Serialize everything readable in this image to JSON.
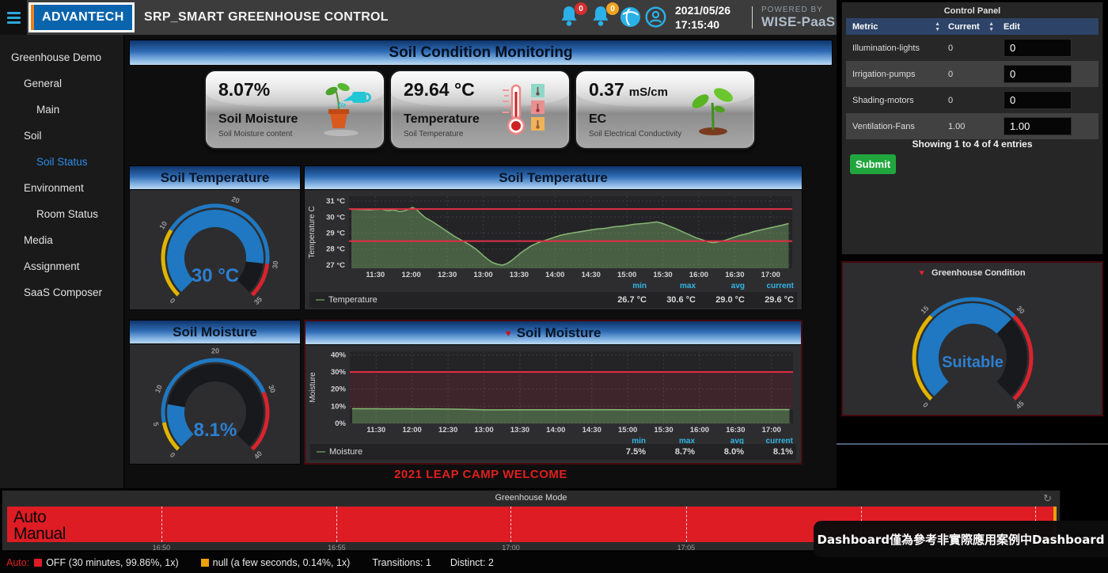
{
  "topbar": {
    "logo": "ADVANTECH",
    "title": "SRP_SMART GREENHOUSE CONTROL",
    "alarm_badge": "0",
    "warning_badge": "0",
    "date": "2021/05/26",
    "time": "17:15:40",
    "powered_by": "POWERED BY",
    "brand": "WISE-PaaS"
  },
  "sidebar": {
    "items": [
      {
        "label": "Greenhouse Demo",
        "level": 0,
        "active": false
      },
      {
        "label": "General",
        "level": 1,
        "active": false
      },
      {
        "label": "Main",
        "level": 2,
        "active": false
      },
      {
        "label": "Soil",
        "level": 1,
        "active": false
      },
      {
        "label": "Soil Status",
        "level": 2,
        "active": true
      },
      {
        "label": "Environment",
        "level": 1,
        "active": false
      },
      {
        "label": "Room Status",
        "level": 2,
        "active": false
      },
      {
        "label": "Media",
        "level": 1,
        "active": false
      },
      {
        "label": "Assignment",
        "level": 1,
        "active": false
      },
      {
        "label": "SaaS Composer",
        "level": 1,
        "active": false
      }
    ]
  },
  "banner": {
    "title": "Soil Condition Monitoring"
  },
  "cards": [
    {
      "value": "8.07%",
      "unit": "",
      "label": "Soil Moisture",
      "sublabel": "Soil Moisture  content",
      "icon": "watering-plant-icon"
    },
    {
      "value": "29.64 °C",
      "unit": "",
      "label": "Temperature",
      "sublabel": "Soil Temperature",
      "icon": "thermometer-icon"
    },
    {
      "value": "0.37",
      "unit": "mS/cm",
      "label": "EC",
      "sublabel": "Soil Electrical Conductivity",
      "icon": "seedling-icon"
    }
  ],
  "panel_titles": {
    "soil_temp_gauge": "Soil Temperature",
    "soil_temp_chart": "Soil Temperature",
    "soil_moist_gauge": "Soil Moisture",
    "soil_moist_chart": "Soil Moisture"
  },
  "stats_headers": [
    "min",
    "max",
    "avg",
    "current"
  ],
  "chart_data": [
    {
      "id": "soil-temp-gauge",
      "type": "gauge",
      "title": "Soil Temperature",
      "min": 0,
      "max": 35,
      "value": 30,
      "display": "30 °C",
      "value_color": "#2d7fd0",
      "ticks": [
        0,
        10,
        20,
        30,
        35
      ],
      "thresholds": [
        {
          "from": 0,
          "to": 10,
          "color": "#e0b400"
        },
        {
          "from": 10,
          "to": 30,
          "color": "#1f78c1"
        },
        {
          "from": 30,
          "to": 35,
          "color": "#d9232e"
        }
      ],
      "bar_color": "#1f78c1"
    },
    {
      "id": "soil-temp-chart",
      "type": "area",
      "title": "Soil Temperature",
      "ylabel": "Temperature C",
      "ylim": [
        26.8,
        31.3
      ],
      "y_ticks": [
        {
          "v": 27,
          "label": "27 °C"
        },
        {
          "v": 28,
          "label": "28 °C"
        },
        {
          "v": 29,
          "label": "29 °C"
        },
        {
          "v": 30,
          "label": "30 °C"
        },
        {
          "v": 31,
          "label": "31 °C"
        }
      ],
      "xlim": [
        668,
        1038
      ],
      "x_ticks": [
        {
          "v": 690,
          "label": "11:30"
        },
        {
          "v": 720,
          "label": "12:00"
        },
        {
          "v": 750,
          "label": "12:30"
        },
        {
          "v": 780,
          "label": "13:00"
        },
        {
          "v": 810,
          "label": "13:30"
        },
        {
          "v": 840,
          "label": "14:00"
        },
        {
          "v": 870,
          "label": "14:30"
        },
        {
          "v": 900,
          "label": "15:00"
        },
        {
          "v": 930,
          "label": "15:30"
        },
        {
          "v": 960,
          "label": "16:00"
        },
        {
          "v": 990,
          "label": "16:30"
        },
        {
          "v": 1020,
          "label": "17:00"
        }
      ],
      "threshold_lines": [
        {
          "v": 30.5,
          "color": "#e02f44"
        },
        {
          "v": 28.5,
          "color": "#e02f44"
        }
      ],
      "series": [
        {
          "name": "Temperature",
          "color": "#86b874",
          "fill": "rgba(126,178,109,0.42)",
          "points": [
            [
              670,
              30.5
            ],
            [
              685,
              30.45
            ],
            [
              695,
              30.5
            ],
            [
              700,
              30.4
            ],
            [
              705,
              30.45
            ],
            [
              710,
              30.35
            ],
            [
              715,
              30.4
            ],
            [
              718,
              30.5
            ],
            [
              721,
              30.6
            ],
            [
              724,
              30.5
            ],
            [
              728,
              30.2
            ],
            [
              732,
              29.95
            ],
            [
              738,
              29.7
            ],
            [
              744,
              29.4
            ],
            [
              750,
              29.1
            ],
            [
              756,
              28.8
            ],
            [
              762,
              28.55
            ],
            [
              768,
              28.3
            ],
            [
              774,
              28.0
            ],
            [
              780,
              27.6
            ],
            [
              784,
              27.35
            ],
            [
              788,
              27.15
            ],
            [
              792,
              27.05
            ],
            [
              796,
              27.0
            ],
            [
              800,
              27.1
            ],
            [
              804,
              27.3
            ],
            [
              808,
              27.55
            ],
            [
              812,
              27.8
            ],
            [
              816,
              28.0
            ],
            [
              820,
              28.2
            ],
            [
              826,
              28.4
            ],
            [
              832,
              28.55
            ],
            [
              838,
              28.7
            ],
            [
              844,
              28.85
            ],
            [
              850,
              28.95
            ],
            [
              858,
              29.05
            ],
            [
              866,
              29.15
            ],
            [
              874,
              29.25
            ],
            [
              882,
              29.3
            ],
            [
              890,
              29.4
            ],
            [
              898,
              29.45
            ],
            [
              906,
              29.55
            ],
            [
              914,
              29.6
            ],
            [
              920,
              29.65
            ],
            [
              925,
              29.7
            ],
            [
              930,
              29.6
            ],
            [
              935,
              29.45
            ],
            [
              940,
              29.3
            ],
            [
              946,
              29.1
            ],
            [
              952,
              28.9
            ],
            [
              958,
              28.7
            ],
            [
              964,
              28.55
            ],
            [
              968,
              28.45
            ],
            [
              972,
              28.4
            ],
            [
              976,
              28.45
            ],
            [
              982,
              28.55
            ],
            [
              988,
              28.7
            ],
            [
              994,
              28.85
            ],
            [
              1000,
              28.95
            ],
            [
              1006,
              29.1
            ],
            [
              1012,
              29.2
            ],
            [
              1018,
              29.3
            ],
            [
              1024,
              29.4
            ],
            [
              1030,
              29.5
            ],
            [
              1035,
              29.6
            ]
          ]
        }
      ],
      "stats": {
        "min": "26.7 °C",
        "max": "30.6 °C",
        "avg": "29.0 °C",
        "current": "29.6 °C"
      },
      "alert_heart": false
    },
    {
      "id": "soil-moist-gauge",
      "type": "gauge",
      "title": "Soil Moisture",
      "min": 0,
      "max": 40,
      "value": 8.1,
      "display": "8.1%",
      "value_color": "#2d7fd0",
      "ticks": [
        0,
        5,
        10,
        20,
        30,
        40
      ],
      "thresholds": [
        {
          "from": 0,
          "to": 5,
          "color": "#e0b400"
        },
        {
          "from": 5,
          "to": 30,
          "color": "#1f78c1"
        },
        {
          "from": 30,
          "to": 40,
          "color": "#d9232e"
        }
      ],
      "bar_color": "#1f78c1"
    },
    {
      "id": "soil-moist-chart",
      "type": "area",
      "title": "Soil Moisture",
      "ylabel": "Moisture",
      "ylim": [
        0,
        42
      ],
      "y_ticks": [
        {
          "v": 0,
          "label": "0%"
        },
        {
          "v": 10,
          "label": "10%"
        },
        {
          "v": 20,
          "label": "20%"
        },
        {
          "v": 30,
          "label": "30%"
        },
        {
          "v": 40,
          "label": "40%"
        }
      ],
      "xlim": [
        668,
        1038
      ],
      "x_ticks": [
        {
          "v": 690,
          "label": "11:30"
        },
        {
          "v": 720,
          "label": "12:00"
        },
        {
          "v": 750,
          "label": "12:30"
        },
        {
          "v": 780,
          "label": "13:00"
        },
        {
          "v": 810,
          "label": "13:30"
        },
        {
          "v": 840,
          "label": "14:00"
        },
        {
          "v": 870,
          "label": "14:30"
        },
        {
          "v": 900,
          "label": "15:00"
        },
        {
          "v": 930,
          "label": "15:30"
        },
        {
          "v": 960,
          "label": "16:00"
        },
        {
          "v": 990,
          "label": "16:30"
        },
        {
          "v": 1020,
          "label": "17:00"
        }
      ],
      "threshold_lines": [
        {
          "v": 30,
          "color": "#e02f44"
        }
      ],
      "threshold_region": {
        "from": 8.2,
        "to": 30,
        "color": "rgba(224,47,68,0.14)"
      },
      "series": [
        {
          "name": "Moisture",
          "color": "#86b874",
          "fill": "rgba(126,178,109,0.42)",
          "points": [
            [
              670,
              8.6
            ],
            [
              690,
              8.55
            ],
            [
              700,
              8.5
            ],
            [
              715,
              8.55
            ],
            [
              725,
              8.45
            ],
            [
              735,
              8.5
            ],
            [
              750,
              8.35
            ],
            [
              765,
              8.2
            ],
            [
              780,
              8.0
            ],
            [
              790,
              7.9
            ],
            [
              800,
              7.95
            ],
            [
              815,
              8.0
            ],
            [
              840,
              8.0
            ],
            [
              870,
              8.05
            ],
            [
              900,
              8.0
            ],
            [
              930,
              8.0
            ],
            [
              960,
              8.0
            ],
            [
              985,
              8.05
            ],
            [
              1010,
              8.1
            ],
            [
              1035,
              8.1
            ]
          ]
        }
      ],
      "stats": {
        "min": "7.5%",
        "max": "8.7%",
        "avg": "8.0%",
        "current": "8.1%"
      },
      "alert_heart": true
    },
    {
      "id": "greenhouse-condition-gauge",
      "type": "gauge",
      "title": "Greenhouse Condition",
      "min": 0,
      "max": 45,
      "value": 30,
      "display": "Suitable",
      "value_color": "#2d7fd0",
      "ticks": [
        0,
        15,
        30,
        45
      ],
      "thresholds": [
        {
          "from": 0,
          "to": 15,
          "color": "#e0b400"
        },
        {
          "from": 15,
          "to": 30,
          "color": "#1f78c1"
        },
        {
          "from": 30,
          "to": 45,
          "color": "#d9232e"
        }
      ],
      "bar_color": "#1f78c1"
    },
    {
      "id": "greenhouse-mode",
      "type": "discrete",
      "title": "Greenhouse Mode",
      "rows": [
        "Auto",
        "Manual"
      ],
      "segments": [
        {
          "state": "OFF",
          "color": "#dd1c24",
          "percent": 99.86
        },
        {
          "state": "null",
          "color": "#eca00b",
          "percent": 0.14
        }
      ],
      "x_ticks": [
        {
          "f": 0.147,
          "label": "16:50"
        },
        {
          "f": 0.314,
          "label": "16:55"
        },
        {
          "f": 0.48,
          "label": "17:00"
        },
        {
          "f": 0.647,
          "label": "17:05"
        },
        {
          "f": 0.814,
          "label": ""
        },
        {
          "f": 0.98,
          "label": ""
        }
      ],
      "legend_prefix": "Auto:",
      "legend_items": [
        {
          "color": "#dd1c24",
          "text": "OFF (30 minutes, 99.86%, 1x)"
        },
        {
          "color": "#eca00b",
          "text": "null (a few seconds, 0.14%, 1x)"
        }
      ],
      "transitions": "Transitions: 1",
      "distinct": "Distinct: 2"
    }
  ],
  "control_panel": {
    "title": "Control Panel",
    "columns": {
      "metric": "Metric",
      "current": "Current",
      "edit": "Edit"
    },
    "rows": [
      {
        "metric": "Illumination-lights",
        "current": "0",
        "edit": "0"
      },
      {
        "metric": "Irrigation-pumps",
        "current": "0",
        "edit": "0"
      },
      {
        "metric": "Shading-motors",
        "current": "0",
        "edit": "0"
      },
      {
        "metric": "Ventilation-Fans",
        "current": "1.00",
        "edit": "1.00"
      }
    ],
    "footer": "Showing 1 to 4 of 4 entries",
    "submit_label": "Submit"
  },
  "condition_panel": {
    "title": "Greenhouse Condition"
  },
  "welcome_text": "2021 LEAP CAMP WELCOME",
  "tooltip": "Dashboard僅為參考非實際應用案例中Dashboard",
  "colors": {
    "accent_blue": "#1f78c1",
    "threshold_yellow": "#e0b400",
    "threshold_red": "#d9232e",
    "alert_red": "#e02f44",
    "series_green": "#7eb26d",
    "stat_header_cyan": "#33b5e5",
    "mode_red": "#dd1c24",
    "mode_yellow": "#eca00b",
    "submit_green": "#21a63d"
  }
}
